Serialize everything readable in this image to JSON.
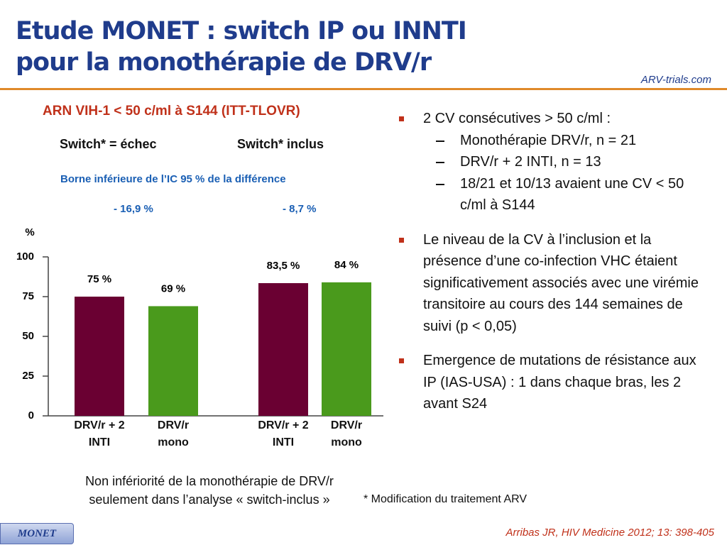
{
  "header": {
    "title_lines": [
      "Etude MONET : switch IP ou INNTI",
      "pour la monothérapie de DRV/r"
    ],
    "logo": "ARV-trials.com"
  },
  "chart_data": {
    "type": "bar",
    "title": "ARN VIH-1 < 50 c/ml à S144 (ITT-TLOVR)",
    "groups": [
      "Switch* = échec",
      "Switch* inclus"
    ],
    "subtitle": "Borne inférieure de l’IC 95 % de la différence",
    "group_differences": [
      "- 16,9 %",
      "- 8,7 %"
    ],
    "ylabel": "%",
    "categories": [
      "DRV/r + 2 INTI",
      "DRV/r mono",
      "DRV/r + 2 INTI",
      "DRV/r mono"
    ],
    "values": [
      75,
      69,
      83.5,
      84
    ],
    "value_labels": [
      "75 %",
      "69 %",
      "83,5 %",
      "84 %"
    ],
    "colors": [
      "#6a0032",
      "#4a9a1c",
      "#6a0032",
      "#4a9a1c"
    ],
    "ylim": [
      0,
      100
    ],
    "yticks": [
      0,
      25,
      50,
      75,
      100
    ]
  },
  "conclusion": "Non infériorité de la monothérapie de DRV/r seulement dans l’analyse « switch-inclus »",
  "bullets": [
    {
      "text": "2 CV consécutives > 50 c/ml :",
      "subitems": [
        "Monothérapie DRV/r, n = 21",
        "DRV/r + 2 INTI, n = 13",
        "18/21 et 10/13 avaient une CV < 50 c/ml à S144"
      ]
    },
    {
      "text": "Le niveau de la CV à l’inclusion et la présence d’une co-infection VHC étaient significativement associés avec une virémie transitoire au cours des 144 semaines de suivi (p < 0,05)"
    },
    {
      "text": "Emergence de mutations de résistance aux IP (IAS-USA) : 1 dans chaque bras, les 2 avant S24"
    }
  ],
  "footnote": "* Modification du traitement ARV",
  "badge": "MONET",
  "citation": "Arribas JR, HIV Medicine 2012; 13: 398-405"
}
